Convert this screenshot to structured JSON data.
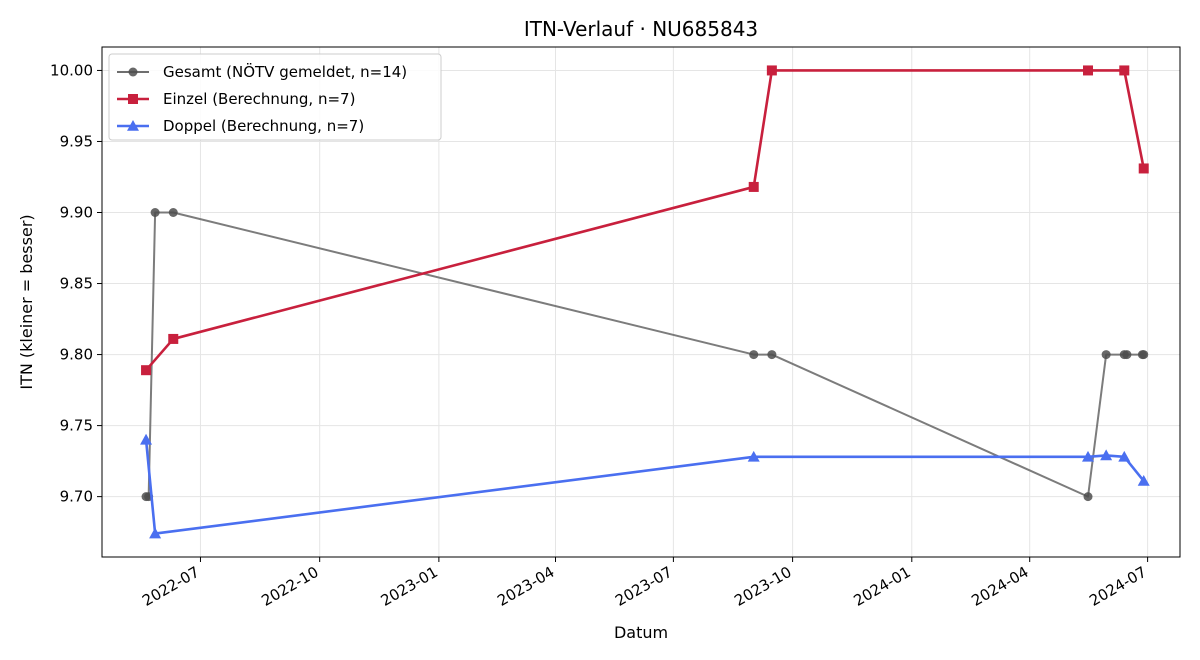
{
  "chart_data": {
    "type": "line",
    "title": "ITN-Verlauf · NU685843",
    "xlabel": "Datum",
    "ylabel": "ITN  (kleiner = besser)",
    "xlim": [
      "2022-04-16",
      "2024-07-26"
    ],
    "ylim": [
      9.6575,
      10.0165
    ],
    "grid": true,
    "legend_position": "top-left",
    "x_ticks": [
      "2022-07",
      "2022-10",
      "2023-01",
      "2023-04",
      "2023-07",
      "2023-10",
      "2024-01",
      "2024-04",
      "2024-07"
    ],
    "y_ticks": [
      "9.70",
      "9.75",
      "9.80",
      "9.85",
      "9.90",
      "9.95",
      "10.00"
    ],
    "series": [
      {
        "name": "Gesamt (NÖTV gemeldet, n=14)",
        "color": "#6e6e6e",
        "marker": "circle",
        "points": [
          [
            "2022-05-20",
            9.7
          ],
          [
            "2022-05-22",
            9.7
          ],
          [
            "2022-05-27",
            9.9
          ],
          [
            "2022-06-10",
            9.9
          ],
          [
            "2023-09-01",
            9.8
          ],
          [
            "2023-09-15",
            9.8
          ],
          [
            "2024-05-16",
            9.7
          ],
          [
            "2024-05-30",
            9.8
          ],
          [
            "2024-06-13",
            9.8
          ],
          [
            "2024-06-15",
            9.8
          ],
          [
            "2024-06-27",
            9.8
          ],
          [
            "2024-06-28",
            9.8
          ]
        ]
      },
      {
        "name": "Einzel (Berechnung, n=7)",
        "color": "#c8203d",
        "marker": "square",
        "points": [
          [
            "2022-05-20",
            9.789
          ],
          [
            "2022-06-10",
            9.811
          ],
          [
            "2023-09-01",
            9.918
          ],
          [
            "2023-09-15",
            10.0
          ],
          [
            "2024-05-16",
            10.0
          ],
          [
            "2024-06-13",
            10.0
          ],
          [
            "2024-06-28",
            9.931
          ]
        ]
      },
      {
        "name": "Doppel (Berechnung, n=7)",
        "color": "#4a6ff0",
        "marker": "triangle",
        "points": [
          [
            "2022-05-20",
            9.74
          ],
          [
            "2022-05-27",
            9.674
          ],
          [
            "2023-09-01",
            9.728
          ],
          [
            "2024-05-16",
            9.728
          ],
          [
            "2024-05-30",
            9.729
          ],
          [
            "2024-06-13",
            9.728
          ],
          [
            "2024-06-28",
            9.711
          ]
        ]
      }
    ]
  }
}
